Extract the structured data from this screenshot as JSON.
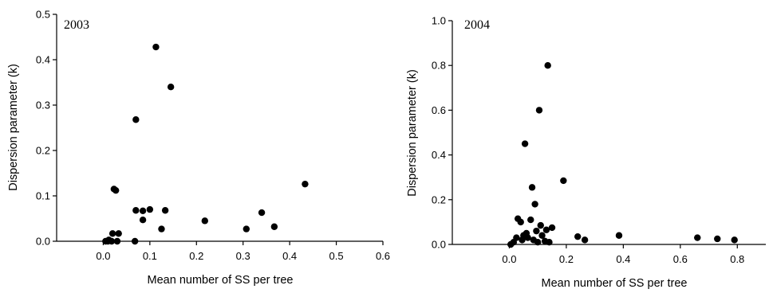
{
  "chart_data": [
    {
      "type": "scatter",
      "title": "2003",
      "xlabel": "Mean number of SS per tree",
      "ylabel": "Dispersion parameter (k)",
      "xlim": [
        -0.1,
        0.6
      ],
      "ylim": [
        0,
        0.5
      ],
      "xticks": [
        "0.0",
        "0.1",
        "0.2",
        "0.3",
        "0.4",
        "0.5",
        "0.6"
      ],
      "yticks": [
        "0.0",
        "0.1",
        "0.2",
        "0.3",
        "0.4",
        "0.5"
      ],
      "grid": false,
      "points": [
        {
          "x": 0.005,
          "y": 0.0
        },
        {
          "x": 0.01,
          "y": 0.0
        },
        {
          "x": 0.012,
          "y": 0.003
        },
        {
          "x": 0.018,
          "y": 0.0
        },
        {
          "x": 0.02,
          "y": 0.017
        },
        {
          "x": 0.023,
          "y": 0.115
        },
        {
          "x": 0.027,
          "y": 0.112
        },
        {
          "x": 0.03,
          "y": 0.0
        },
        {
          "x": 0.033,
          "y": 0.017
        },
        {
          "x": 0.068,
          "y": 0.0
        },
        {
          "x": 0.07,
          "y": 0.268
        },
        {
          "x": 0.07,
          "y": 0.068
        },
        {
          "x": 0.085,
          "y": 0.067
        },
        {
          "x": 0.085,
          "y": 0.047
        },
        {
          "x": 0.1,
          "y": 0.07
        },
        {
          "x": 0.113,
          "y": 0.428
        },
        {
          "x": 0.125,
          "y": 0.027
        },
        {
          "x": 0.133,
          "y": 0.068
        },
        {
          "x": 0.145,
          "y": 0.34
        },
        {
          "x": 0.218,
          "y": 0.045
        },
        {
          "x": 0.307,
          "y": 0.027
        },
        {
          "x": 0.34,
          "y": 0.063
        },
        {
          "x": 0.367,
          "y": 0.032
        },
        {
          "x": 0.433,
          "y": 0.126
        }
      ]
    },
    {
      "type": "scatter",
      "title": "2004",
      "xlabel": "Mean number of SS per tree",
      "ylabel": "Dispersion parameter (k)",
      "xlim": [
        -0.2,
        0.9
      ],
      "ylim": [
        0,
        1.0
      ],
      "xticks": [
        "0.0",
        "0.2",
        "0.4",
        "0.6",
        "0.8"
      ],
      "yticks": [
        "0.0",
        "0.2",
        "0.4",
        "0.6",
        "0.8",
        "1.0"
      ],
      "grid": false,
      "points": [
        {
          "x": 0.005,
          "y": 0.0
        },
        {
          "x": 0.015,
          "y": 0.01
        },
        {
          "x": 0.025,
          "y": 0.03
        },
        {
          "x": 0.03,
          "y": 0.115
        },
        {
          "x": 0.04,
          "y": 0.1
        },
        {
          "x": 0.045,
          "y": 0.02
        },
        {
          "x": 0.05,
          "y": 0.04
        },
        {
          "x": 0.055,
          "y": 0.45
        },
        {
          "x": 0.06,
          "y": 0.05
        },
        {
          "x": 0.065,
          "y": 0.03
        },
        {
          "x": 0.075,
          "y": 0.11
        },
        {
          "x": 0.08,
          "y": 0.255
        },
        {
          "x": 0.085,
          "y": 0.02
        },
        {
          "x": 0.09,
          "y": 0.18
        },
        {
          "x": 0.095,
          "y": 0.06
        },
        {
          "x": 0.1,
          "y": 0.01
        },
        {
          "x": 0.105,
          "y": 0.6
        },
        {
          "x": 0.11,
          "y": 0.085
        },
        {
          "x": 0.115,
          "y": 0.04
        },
        {
          "x": 0.125,
          "y": 0.015
        },
        {
          "x": 0.13,
          "y": 0.065
        },
        {
          "x": 0.135,
          "y": 0.8
        },
        {
          "x": 0.14,
          "y": 0.01
        },
        {
          "x": 0.15,
          "y": 0.075
        },
        {
          "x": 0.19,
          "y": 0.285
        },
        {
          "x": 0.24,
          "y": 0.035
        },
        {
          "x": 0.265,
          "y": 0.02
        },
        {
          "x": 0.385,
          "y": 0.04
        },
        {
          "x": 0.66,
          "y": 0.03
        },
        {
          "x": 0.73,
          "y": 0.025
        },
        {
          "x": 0.79,
          "y": 0.02
        }
      ]
    }
  ]
}
